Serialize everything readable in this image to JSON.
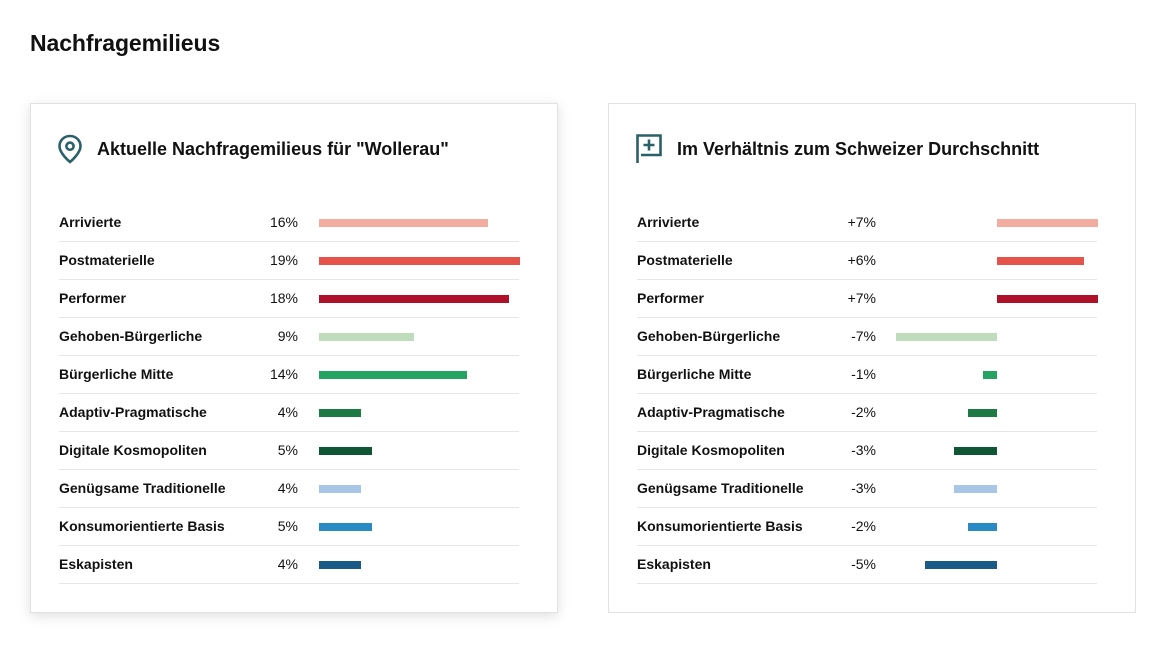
{
  "page_title": "Nachfragemilieus",
  "panels": [
    {
      "title": "Aktuelle Nachfragemilieus für \"Wollerau\"",
      "icon": "location-pin-icon"
    },
    {
      "title": "Im Verhältnis zum Schweizer Durchschnitt",
      "icon": "flag-plus-icon"
    }
  ],
  "chart_data": [
    {
      "type": "bar",
      "title": "Aktuelle Nachfragemilieus für \"Wollerau\"",
      "categories": [
        "Arrivierte",
        "Postmaterielle",
        "Performer",
        "Gehoben-Bürgerliche",
        "Bürgerliche Mitte",
        "Adaptiv-Pragmatische",
        "Digitale Kosmopoliten",
        "Genügsame Traditionelle",
        "Konsumorientierte Basis",
        "Eskapisten"
      ],
      "values": [
        16,
        19,
        18,
        9,
        14,
        4,
        5,
        4,
        5,
        4
      ],
      "value_labels": [
        "16%",
        "19%",
        "18%",
        "9%",
        "14%",
        "4%",
        "5%",
        "4%",
        "5%",
        "4%"
      ],
      "colors": [
        "#f3ada0",
        "#e5534b",
        "#b0112a",
        "#bfdcbd",
        "#25a360",
        "#1e7a44",
        "#0f5634",
        "#a9c6e6",
        "#2a8ac6",
        "#1a5a86"
      ]
    },
    {
      "type": "bar",
      "title": "Im Verhältnis zum Schweizer Durchschnitt",
      "categories": [
        "Arrivierte",
        "Postmaterielle",
        "Performer",
        "Gehoben-Bürgerliche",
        "Bürgerliche Mitte",
        "Adaptiv-Pragmatische",
        "Digitale Kosmopoliten",
        "Genügsame Traditionelle",
        "Konsumorientierte Basis",
        "Eskapisten"
      ],
      "values": [
        7,
        6,
        7,
        -7,
        -1,
        -2,
        -3,
        -3,
        -2,
        -5
      ],
      "value_labels": [
        "+7%",
        "+6%",
        "+7%",
        "-7%",
        "-1%",
        "-2%",
        "-3%",
        "-3%",
        "-2%",
        "-5%"
      ],
      "colors": [
        "#f3ada0",
        "#e5534b",
        "#b0112a",
        "#bfdcbd",
        "#25a360",
        "#1e7a44",
        "#0f5634",
        "#a9c6e6",
        "#2a8ac6",
        "#1a5a86"
      ]
    }
  ]
}
